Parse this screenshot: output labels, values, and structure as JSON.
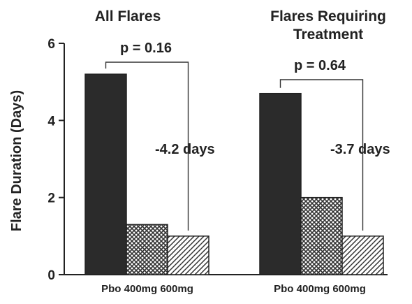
{
  "chart_data": {
    "type": "bar",
    "ylabel": "Flare Duration (Days)",
    "ylim": [
      0,
      6
    ],
    "yticks": [
      "0",
      "2",
      "4",
      "6"
    ],
    "grid": false,
    "groups": [
      {
        "title_lines": [
          "All Flares"
        ],
        "xtick_label": "Pbo 400mg 600mg",
        "categories": [
          "Pbo",
          "400mg",
          "600mg"
        ],
        "values": [
          5.2,
          1.3,
          1.0
        ],
        "p_value_label": "p = 0.16",
        "difference_label": "-4.2 days"
      },
      {
        "title_lines": [
          "Flares Requiring",
          "Treatment"
        ],
        "xtick_label": "Pbo 400mg 600mg",
        "categories": [
          "Pbo",
          "400mg",
          "600mg"
        ],
        "values": [
          4.7,
          2.0,
          1.0
        ],
        "p_value_label": "p = 0.64",
        "difference_label": "-3.7 days"
      }
    ],
    "bar_styles": [
      {
        "category": "Pbo",
        "fill": "#2b2b2b",
        "pattern": "solid"
      },
      {
        "category": "400mg",
        "fill": "#3a3a3a",
        "pattern": "crosshatch"
      },
      {
        "category": "600mg",
        "fill": "#3a3a3a",
        "pattern": "diagonal"
      }
    ]
  }
}
